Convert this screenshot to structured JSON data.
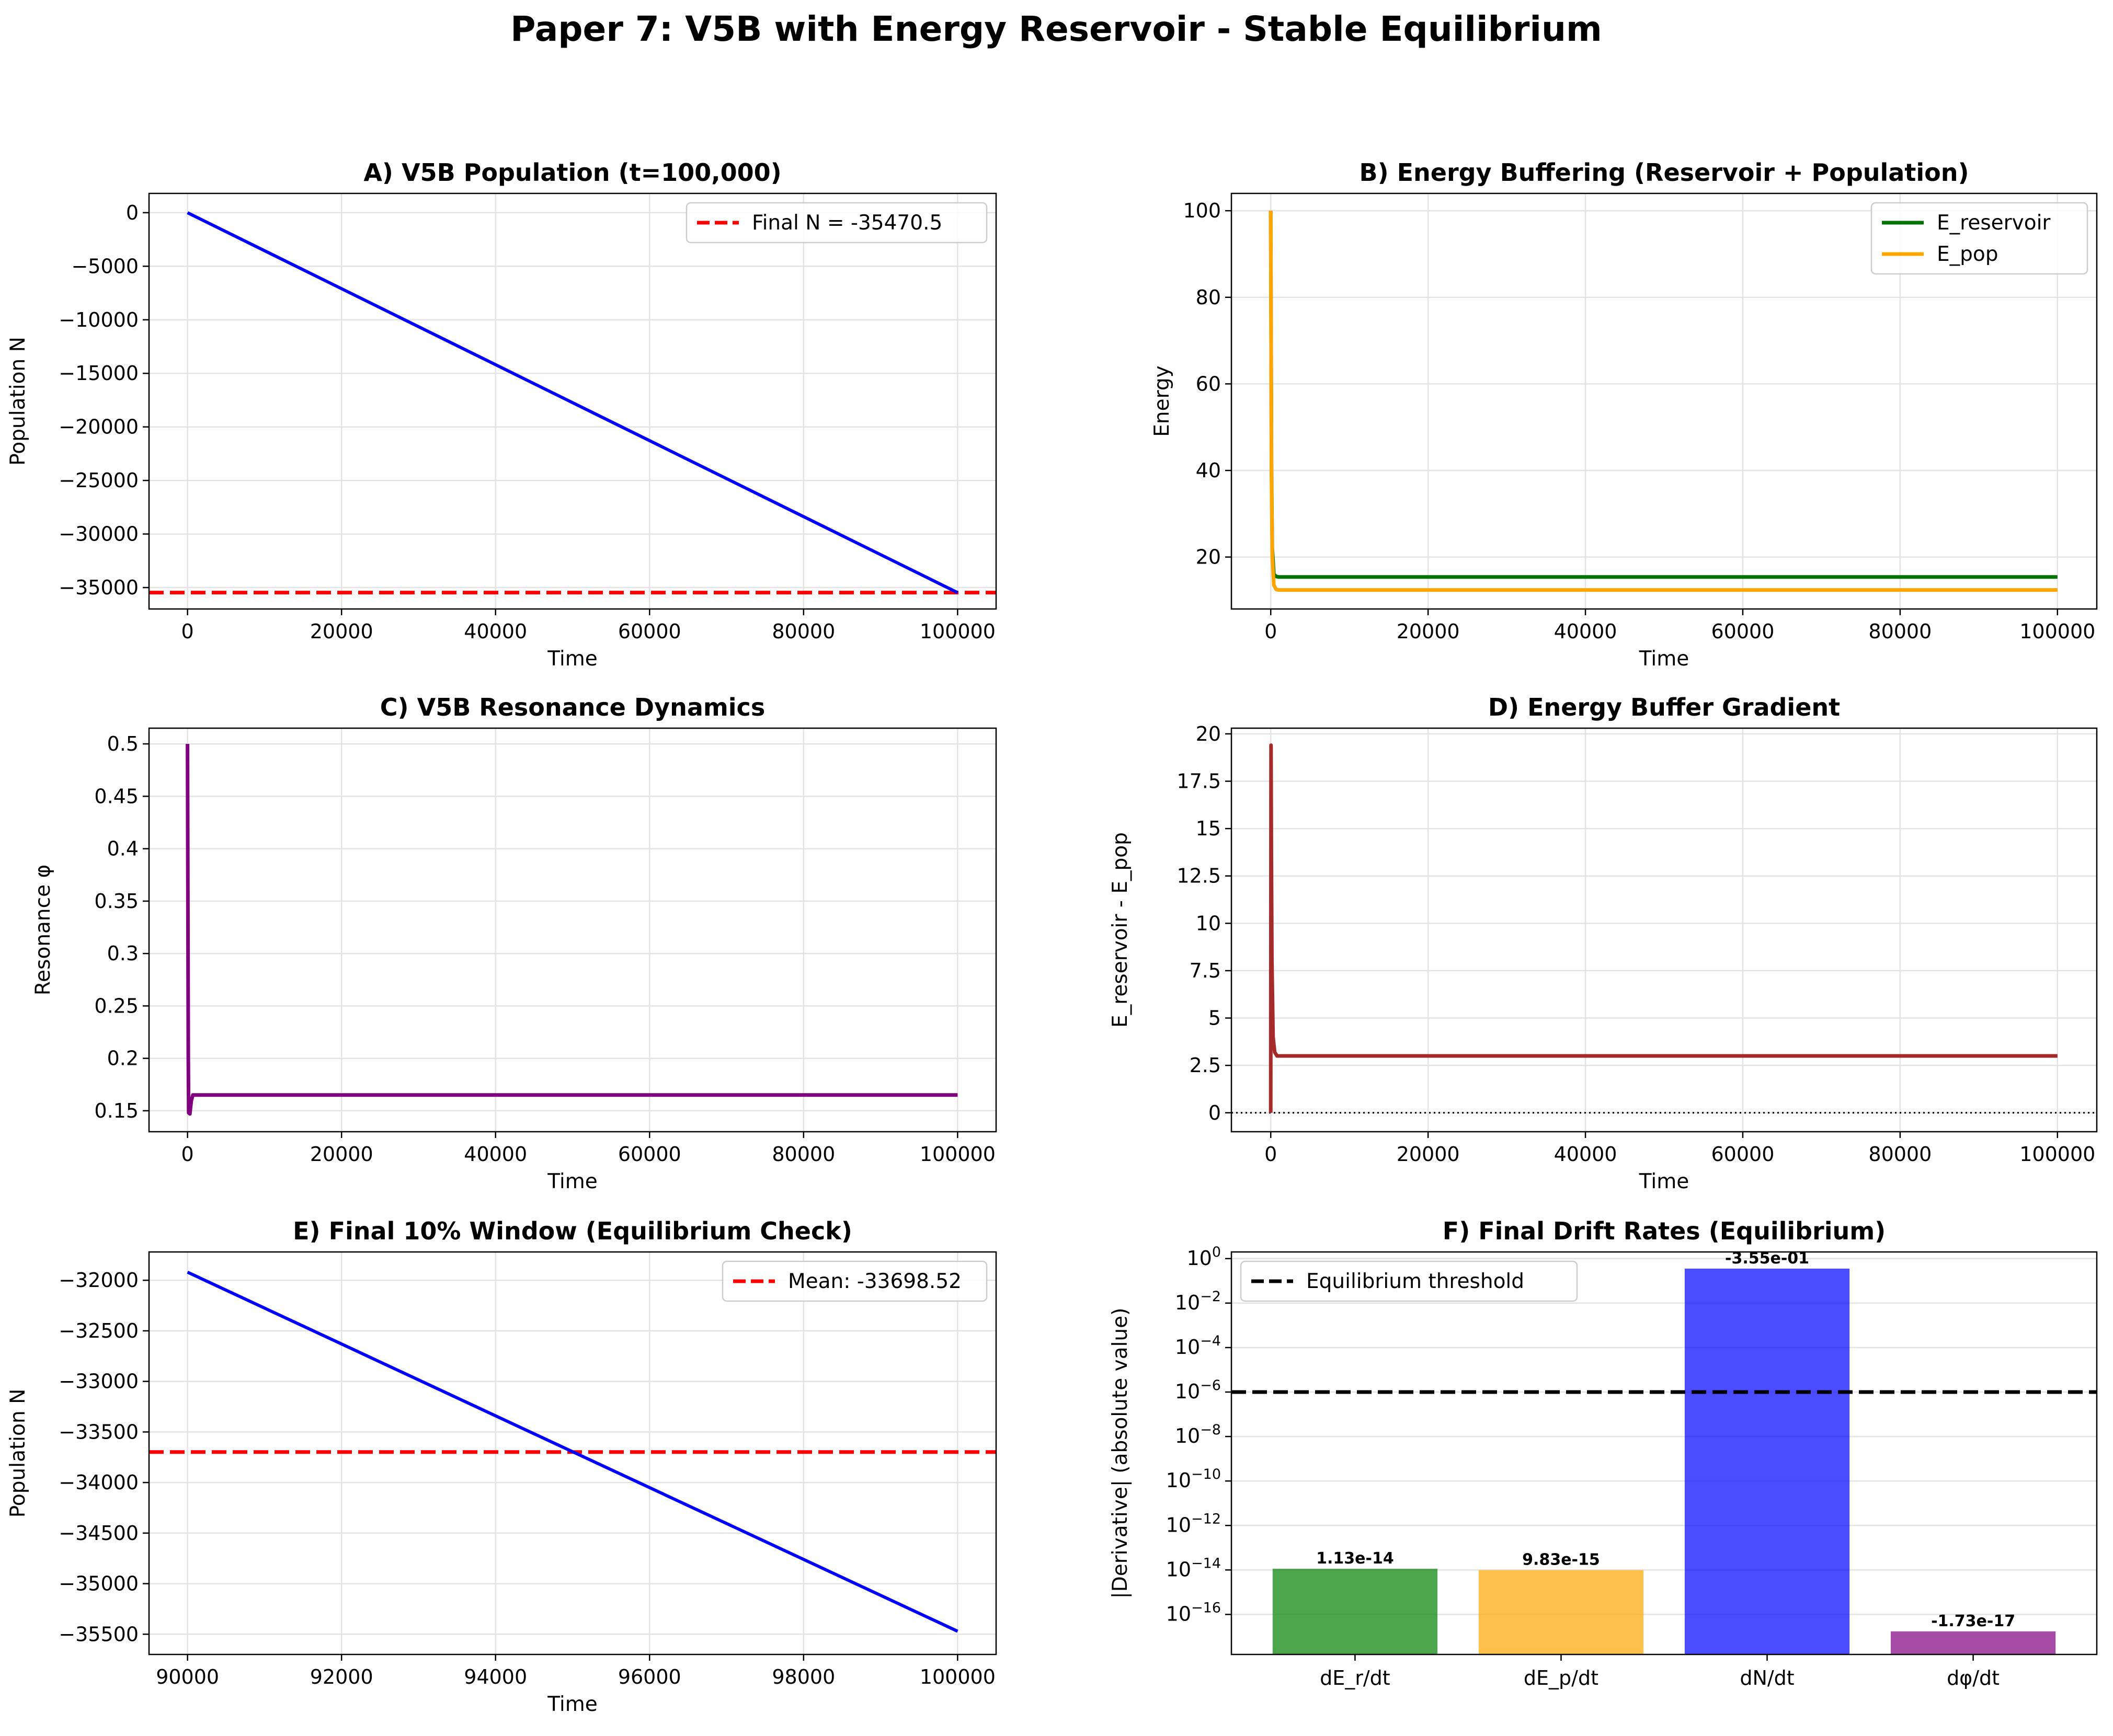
{
  "suptitle": "Paper 7: V5B with Energy Reservoir - Stable Equilibrium",
  "colors": {
    "blue": "#0000ff",
    "red": "#ff0000",
    "green": "#007300",
    "orange": "#ffa500",
    "purple": "#800080",
    "brown": "#a52a2a",
    "black": "#000000"
  },
  "chart_data": [
    {
      "id": "A",
      "type": "line",
      "title": "A) V5B Population (t=100,000)",
      "xlabel": "Time",
      "ylabel": "Population N",
      "xlim": [
        -5000,
        105000
      ],
      "ylim": [
        -37000,
        1800
      ],
      "xticks": [
        0,
        20000,
        40000,
        60000,
        80000,
        100000
      ],
      "yticks": [
        0,
        -5000,
        -10000,
        -15000,
        -20000,
        -25000,
        -30000,
        -35000
      ],
      "grid": true,
      "legend_position": "upper-right",
      "series": [
        {
          "name": "",
          "color": "#0000ff",
          "width": 6,
          "x": [
            0,
            100000
          ],
          "y": [
            0,
            -35470.5
          ]
        }
      ],
      "hlines": [
        {
          "name": "Final N = -35470.5",
          "y": -35470.5,
          "color": "#ff0000",
          "dash": true,
          "width": 7
        }
      ]
    },
    {
      "id": "B",
      "type": "line",
      "title": "B) Energy Buffering (Reservoir + Population)",
      "xlabel": "Time",
      "ylabel": "Energy",
      "xlim": [
        -5000,
        105000
      ],
      "ylim": [
        8,
        104
      ],
      "xticks": [
        0,
        20000,
        40000,
        60000,
        80000,
        100000
      ],
      "yticks": [
        20,
        40,
        60,
        80,
        100
      ],
      "grid": true,
      "legend_position": "upper-right",
      "series": [
        {
          "name": "E_reservoir",
          "color": "#007300",
          "width": 7,
          "x": [
            0,
            100,
            200,
            400,
            700,
            1000,
            100000
          ],
          "y": [
            100,
            40,
            22,
            16,
            15.5,
            15.4,
            15.4
          ]
        },
        {
          "name": "E_pop",
          "color": "#ffa500",
          "width": 7,
          "x": [
            0,
            100,
            200,
            400,
            700,
            1000,
            100000
          ],
          "y": [
            100,
            38,
            20,
            13.5,
            12.5,
            12.4,
            12.4
          ]
        }
      ]
    },
    {
      "id": "C",
      "type": "line",
      "title": "C) V5B Resonance Dynamics",
      "xlabel": "Time",
      "ylabel": "Resonance φ",
      "xlim": [
        -5000,
        105000
      ],
      "ylim": [
        0.13,
        0.515
      ],
      "xticks": [
        0,
        20000,
        40000,
        60000,
        80000,
        100000
      ],
      "yticks": [
        0.15,
        0.2,
        0.25,
        0.3,
        0.35,
        0.4,
        0.45,
        0.5
      ],
      "grid": true,
      "series": [
        {
          "name": "",
          "color": "#800080",
          "width": 7,
          "x": [
            0,
            100,
            150,
            300,
            500,
            700,
            1000,
            100000
          ],
          "y": [
            0.5,
            0.2,
            0.148,
            0.147,
            0.16,
            0.165,
            0.165,
            0.165
          ]
        }
      ]
    },
    {
      "id": "D",
      "type": "line",
      "title": "D) Energy Buffer Gradient",
      "xlabel": "Time",
      "ylabel": "E_reservoir - E_pop",
      "xlim": [
        -5000,
        105000
      ],
      "ylim": [
        -1,
        20.3
      ],
      "xticks": [
        0,
        20000,
        40000,
        60000,
        80000,
        100000
      ],
      "yticks": [
        0,
        2.5,
        5,
        7.5,
        10,
        12.5,
        15,
        17.5,
        20
      ],
      "grid": true,
      "series": [
        {
          "name": "",
          "color": "#a52a2a",
          "width": 7,
          "x": [
            0,
            40,
            80,
            150,
            300,
            500,
            800,
            100000
          ],
          "y": [
            0,
            19.4,
            14,
            8,
            4,
            3.2,
            3,
            3
          ]
        }
      ],
      "hlines": [
        {
          "name": "",
          "y": 0,
          "color": "#000000",
          "dotted": true,
          "width": 3
        }
      ]
    },
    {
      "id": "E",
      "type": "line",
      "title": "E) Final 10% Window (Equilibrium Check)",
      "xlabel": "Time",
      "ylabel": "Population N",
      "xlim": [
        89500,
        100500
      ],
      "ylim": [
        -35700,
        -31720
      ],
      "xticks": [
        90000,
        92000,
        94000,
        96000,
        98000,
        100000
      ],
      "yticks": [
        -32000,
        -32500,
        -33000,
        -33500,
        -34000,
        -34500,
        -35000,
        -35500
      ],
      "grid": true,
      "legend_position": "upper-right",
      "series": [
        {
          "name": "",
          "color": "#0000ff",
          "width": 6,
          "x": [
            90000,
            100000
          ],
          "y": [
            -31920,
            -35470.5
          ]
        }
      ],
      "hlines": [
        {
          "name": "Mean: -33698.52",
          "y": -33698.52,
          "color": "#ff0000",
          "dash": true,
          "width": 7
        }
      ]
    },
    {
      "id": "F",
      "type": "bar",
      "title": "F) Final Drift Rates (Equilibrium)",
      "xlabel": "",
      "ylabel": "|Derivative| (absolute value)",
      "yscale": "log",
      "ylim_exp": [
        -17.8,
        0.3
      ],
      "ytick_exps": [
        0,
        -2,
        -4,
        -6,
        -8,
        -10,
        -12,
        -14,
        -16
      ],
      "grid": true,
      "legend_position": "upper-left",
      "categories": [
        "dE_r/dt",
        "dE_p/dt",
        "dN/dt",
        "dφ/dt"
      ],
      "values": [
        1.13e-14,
        9.83e-15,
        0.355,
        1.73e-17
      ],
      "labels": [
        "1.13e-14",
        "9.83e-15",
        "-3.55e-01",
        "-1.73e-17"
      ],
      "bar_colors": [
        "#008000",
        "#ffa500",
        "#0000ff",
        "#800080"
      ],
      "threshold": {
        "name": "Equilibrium threshold",
        "value": 1e-06,
        "color": "#000000"
      }
    }
  ]
}
